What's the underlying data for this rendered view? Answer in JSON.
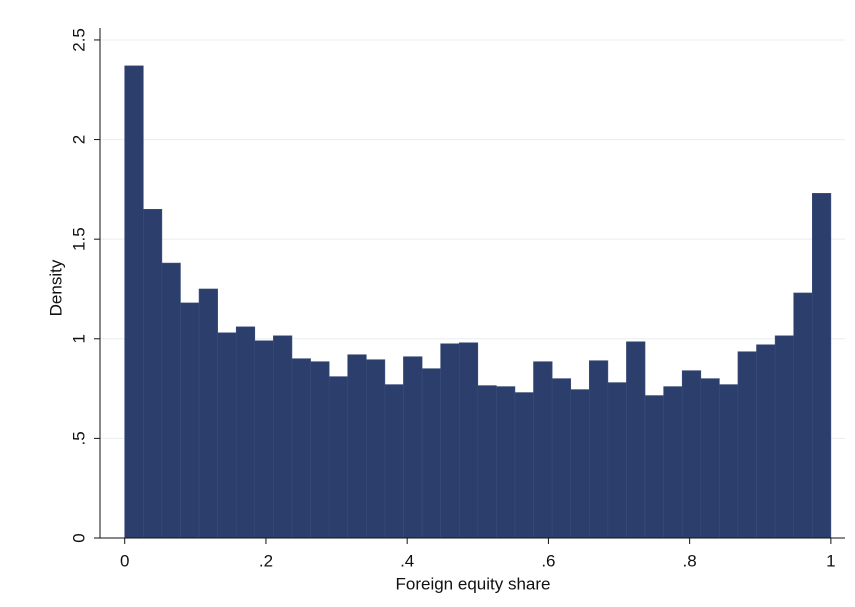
{
  "chart_data": {
    "type": "histogram",
    "xlabel": "Foreign equity share",
    "ylabel": "Density",
    "bins": [
      0,
      0.0263,
      0.0526,
      0.0789,
      0.1053,
      0.1316,
      0.1579,
      0.1842,
      0.2105,
      0.2368,
      0.2632,
      0.2895,
      0.3158,
      0.3421,
      0.3684,
      0.3947,
      0.4211,
      0.4474,
      0.4737,
      0.5,
      0.5263,
      0.5526,
      0.5789,
      0.6053,
      0.6316,
      0.6579,
      0.6842,
      0.7105,
      0.7368,
      0.7632,
      0.7895,
      0.8158,
      0.8421,
      0.8684,
      0.8947,
      0.9211,
      0.9474,
      0.9737,
      1
    ],
    "values": [
      2.37,
      1.65,
      1.38,
      1.18,
      1.25,
      1.03,
      1.06,
      0.99,
      1.015,
      0.9,
      0.885,
      0.81,
      0.92,
      0.895,
      0.77,
      0.91,
      0.85,
      0.975,
      0.98,
      0.765,
      0.76,
      0.73,
      0.885,
      0.8,
      0.745,
      0.89,
      0.78,
      0.985,
      0.715,
      0.76,
      0.84,
      0.8,
      0.77,
      0.935,
      0.97,
      1.015,
      1.23,
      1.73
    ],
    "color": "#2c3e6b",
    "xlim": [
      -0.035,
      1.02
    ],
    "ylim": [
      0,
      2.56
    ],
    "xticks": [
      0,
      {
        "value": 0.2,
        "label": ".2"
      },
      {
        "value": 0.4,
        "label": ".4"
      },
      {
        "value": 0.6,
        "label": ".6"
      },
      {
        "value": 0.8,
        "label": ".8"
      },
      1
    ],
    "yticks": [
      0,
      {
        "value": 0.5,
        "label": ".5"
      },
      1,
      1.5,
      2,
      2.5
    ],
    "grid": true
  }
}
